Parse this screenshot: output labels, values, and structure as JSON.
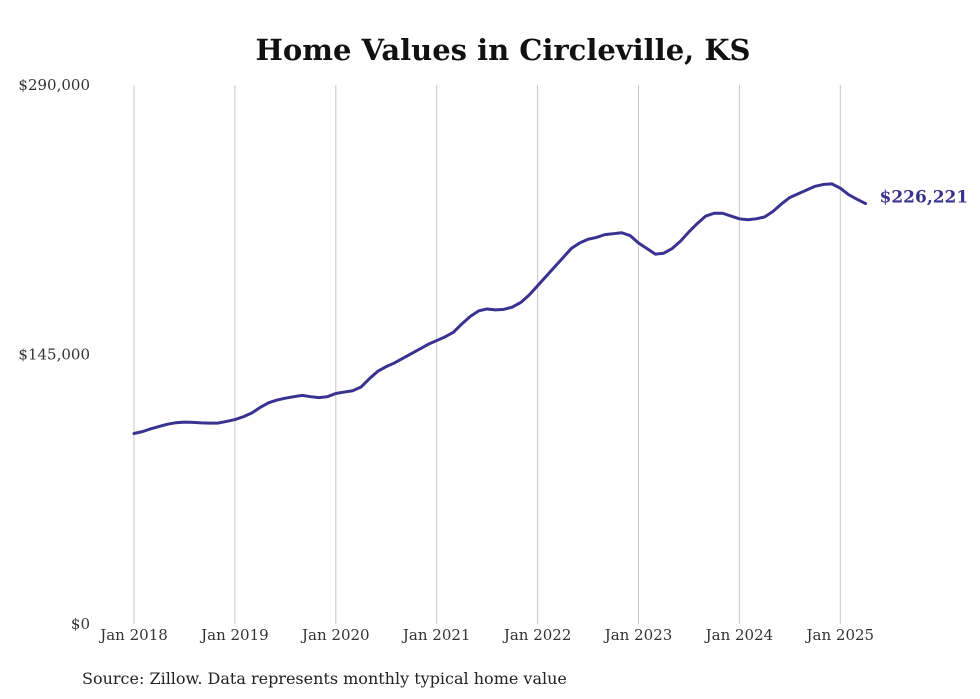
{
  "chart_data": {
    "type": "line",
    "title": "Home Values in Circleville, KS",
    "source_note": "Source: Zillow. Data represents monthly typical home value",
    "y_ticks": [
      {
        "value": 0,
        "label": "$0"
      },
      {
        "value": 145000,
        "label": "$145,000"
      },
      {
        "value": 290000,
        "label": "$290,000"
      }
    ],
    "ylim": [
      0,
      290000
    ],
    "x_ticks": [
      "Jan 2018",
      "Jan 2019",
      "Jan 2020",
      "Jan 2021",
      "Jan 2022",
      "Jan 2023",
      "Jan 2024",
      "Jan 2025"
    ],
    "grid": "vertical",
    "end_label": "$226,221",
    "series": [
      {
        "color": "#3a3290",
        "start": "2018-01",
        "frequency": "monthly",
        "values": [
          102500,
          103500,
          105000,
          106300,
          107500,
          108300,
          108600,
          108500,
          108200,
          108100,
          108100,
          109000,
          110000,
          111500,
          113500,
          116500,
          119000,
          120500,
          121500,
          122300,
          123000,
          122300,
          121800,
          122300,
          124000,
          124800,
          125500,
          127500,
          132000,
          136000,
          138500,
          140500,
          143000,
          145500,
          148000,
          150500,
          152500,
          154500,
          157000,
          161500,
          165500,
          168500,
          169500,
          169000,
          169300,
          170500,
          173000,
          177000,
          182000,
          187000,
          192000,
          197000,
          202000,
          205000,
          207000,
          208000,
          209500,
          210000,
          210500,
          209000,
          205000,
          202000,
          199000,
          199500,
          202000,
          206000,
          211000,
          215500,
          219500,
          221000,
          221000,
          219500,
          218000,
          217500,
          218000,
          219000,
          222000,
          226000,
          229500,
          231500,
          233500,
          235500,
          236500,
          236800,
          234500,
          231000,
          228500,
          226221
        ]
      }
    ]
  }
}
